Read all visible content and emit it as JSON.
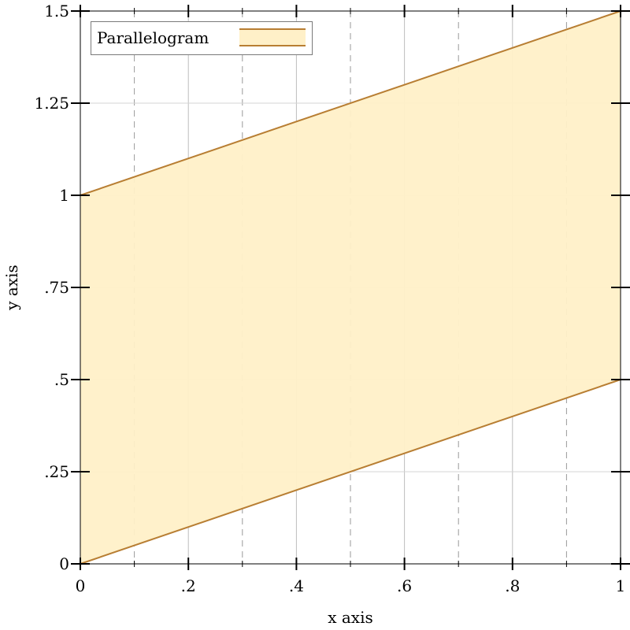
{
  "chart_data": {
    "type": "area",
    "xlabel": "x axis",
    "ylabel": "y axis",
    "xlim": [
      0,
      1
    ],
    "ylim": [
      0,
      1.5
    ],
    "x_ticks": [
      {
        "value": 0,
        "label": "0"
      },
      {
        "value": 0.2,
        "label": ".2"
      },
      {
        "value": 0.4,
        "label": ".4"
      },
      {
        "value": 0.6,
        "label": ".6"
      },
      {
        "value": 0.8,
        "label": ".8"
      },
      {
        "value": 1,
        "label": "1"
      }
    ],
    "x_minor_ticks": [
      0.1,
      0.3,
      0.5,
      0.7,
      0.9
    ],
    "y_ticks": [
      {
        "value": 0,
        "label": "0"
      },
      {
        "value": 0.25,
        "label": ".25"
      },
      {
        "value": 0.5,
        "label": ".5"
      },
      {
        "value": 0.75,
        "label": ".75"
      },
      {
        "value": 1,
        "label": "1"
      },
      {
        "value": 1.25,
        "label": "1.25"
      },
      {
        "value": 1.5,
        "label": "1.5"
      }
    ],
    "grid": true,
    "legend_position": "top-left",
    "series": [
      {
        "name": "Parallelogram",
        "lower": {
          "x": [
            0,
            1
          ],
          "y": [
            0,
            0.5
          ]
        },
        "upper": {
          "x": [
            0,
            1
          ],
          "y": [
            1,
            1.5
          ]
        },
        "fill_color": "#fff0c8",
        "line_color": "#b87e33"
      }
    ]
  }
}
